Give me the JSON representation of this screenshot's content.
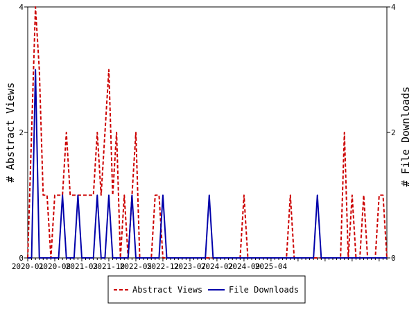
{
  "chart_data": {
    "type": "line",
    "x_start": "2020-01",
    "x_labels": [
      "2020-01",
      "2020-08",
      "2021-03",
      "2021-10",
      "2022-05",
      "2022-12",
      "2023-07",
      "2024-02",
      "2024-09",
      "2025-04"
    ],
    "ylabel_left": "# Abstract Views",
    "ylabel_right": "# File Downloads",
    "ylim_left": [
      0,
      4
    ],
    "ylim_right": [
      0,
      4
    ],
    "y_ticks_left": [
      "0",
      "2",
      "4"
    ],
    "y_ticks_right": [
      "0",
      "2",
      "4"
    ],
    "legend": {
      "placement": "bottom-center"
    },
    "series": [
      {
        "name": "Abstract Views",
        "axis": "left",
        "color": "#cc0000",
        "dash": "dashed",
        "values": [
          0,
          2,
          4,
          3,
          1,
          1,
          0,
          1,
          1,
          1,
          2,
          1,
          1,
          1,
          1,
          1,
          1,
          1,
          2,
          1,
          2,
          3,
          1,
          2,
          0,
          1,
          0,
          1,
          2,
          0,
          0,
          0,
          0,
          1,
          1,
          0,
          0,
          0,
          0,
          0,
          0,
          0,
          0,
          0,
          0,
          0,
          0,
          0,
          0,
          0,
          0,
          0,
          0,
          0,
          0,
          0,
          1,
          0,
          0,
          0,
          0,
          0,
          0,
          0,
          0,
          0,
          0,
          0,
          1,
          0,
          0,
          0,
          0,
          0,
          0,
          0,
          0,
          0,
          0,
          0,
          0,
          0,
          2,
          0,
          1,
          0,
          0,
          1,
          0,
          0,
          0,
          1,
          1,
          0
        ]
      },
      {
        "name": "File Downloads",
        "axis": "right",
        "color": "#0000aa",
        "dash": "solid",
        "values": [
          0,
          0,
          3,
          0,
          0,
          0,
          0,
          0,
          0,
          1,
          0,
          0,
          0,
          1,
          0,
          0,
          0,
          0,
          1,
          0,
          0,
          1,
          0,
          0,
          0,
          0,
          0,
          1,
          0,
          0,
          0,
          0,
          0,
          0,
          0,
          1,
          0,
          0,
          0,
          0,
          0,
          0,
          0,
          0,
          0,
          0,
          0,
          1,
          0,
          0,
          0,
          0,
          0,
          0,
          0,
          0,
          0,
          0,
          0,
          0,
          0,
          0,
          0,
          0,
          0,
          0,
          0,
          0,
          0,
          0,
          0,
          0,
          0,
          0,
          0,
          1,
          0,
          0,
          0,
          0,
          0,
          0,
          0,
          0,
          0,
          0,
          0,
          0,
          0,
          0,
          0,
          0,
          0,
          0
        ]
      }
    ]
  }
}
